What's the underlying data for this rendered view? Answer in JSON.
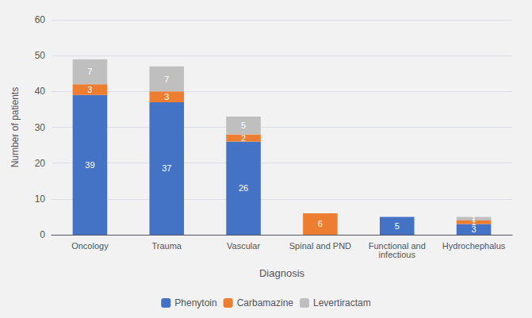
{
  "chart_data": {
    "type": "bar",
    "stacked": true,
    "xlabel": "Diagnosis",
    "ylabel": "Number of patients",
    "categories": [
      "Oncology",
      "Trauma",
      "Vascular",
      "Spinal and PND",
      "Functional and\ninfectious",
      "Hydrochephalus"
    ],
    "series": [
      {
        "name": "Phenytoin",
        "color": "#4472c4",
        "values": [
          39,
          37,
          26,
          0,
          5,
          3
        ]
      },
      {
        "name": "Carbamazine",
        "color": "#ed7d31",
        "values": [
          3,
          3,
          2,
          6,
          0,
          1
        ]
      },
      {
        "name": "Levertiractam",
        "color": "#bfbfbf",
        "values": [
          7,
          7,
          5,
          0,
          0,
          1
        ]
      }
    ],
    "ylim": [
      0,
      60
    ],
    "yticks": [
      0,
      10,
      20,
      30,
      40,
      50,
      60
    ],
    "grid": true,
    "legend": "bottom",
    "data_labels": true
  }
}
